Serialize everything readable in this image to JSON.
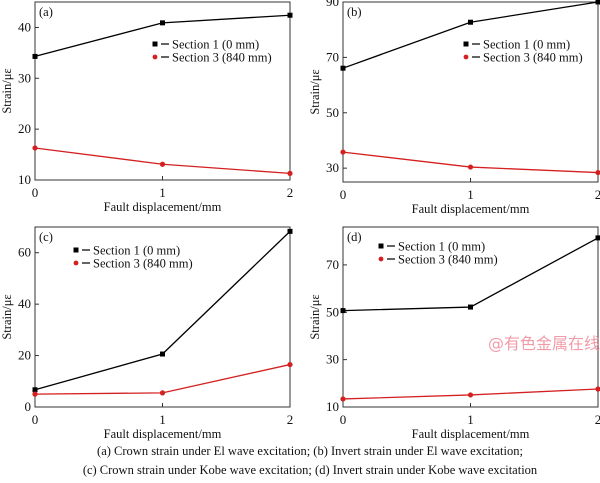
{
  "chart_data": [
    {
      "type": "line",
      "panel_label": "(a)",
      "xlabel": "Fault displacement/mm",
      "ylabel": "Strain/με",
      "x": [
        0,
        1,
        2
      ],
      "xlim": [
        0,
        2
      ],
      "xticks": [
        "0",
        "1",
        "2"
      ],
      "ylim": [
        10,
        45
      ],
      "yticks": [
        10,
        20,
        30,
        40
      ],
      "grid": false,
      "legend_placement": "upper-right",
      "series": [
        {
          "name": "Section 1 (0 mm)",
          "values": [
            34.3,
            40.9,
            42.4
          ],
          "color": "#000000",
          "marker": "square"
        },
        {
          "name": "Section 3 (840 mm)",
          "values": [
            16.3,
            13.1,
            11.3
          ],
          "color": "#d42020",
          "marker": "circle"
        }
      ]
    },
    {
      "type": "line",
      "panel_label": "(b)",
      "xlabel": "Fault displacement/mm",
      "ylabel": "Strain/με",
      "x": [
        0,
        1,
        2
      ],
      "xlim": [
        0,
        2
      ],
      "xticks": [
        "0",
        "1",
        "2"
      ],
      "ylim": [
        25,
        90
      ],
      "yticks": [
        30,
        50,
        70,
        90
      ],
      "grid": false,
      "legend_placement": "upper-right",
      "series": [
        {
          "name": "Section 1 (0 mm)",
          "values": [
            66.1,
            82.7,
            90.0
          ],
          "color": "#000000",
          "marker": "square"
        },
        {
          "name": "Section 3 (840 mm)",
          "values": [
            35.8,
            30.4,
            28.4
          ],
          "color": "#d42020",
          "marker": "circle"
        }
      ]
    },
    {
      "type": "line",
      "panel_label": "(c)",
      "xlabel": "Fault displacement/mm",
      "ylabel": "Strain/με",
      "x": [
        0,
        1,
        2
      ],
      "xlim": [
        0,
        2
      ],
      "xticks": [
        "0",
        "1",
        "2"
      ],
      "ylim": [
        0,
        70
      ],
      "yticks": [
        0,
        20,
        40,
        60
      ],
      "grid": false,
      "legend_placement": "upper-left",
      "series": [
        {
          "name": "Section 1 (0 mm)",
          "values": [
            6.7,
            20.6,
            68.3
          ],
          "color": "#000000",
          "marker": "square"
        },
        {
          "name": "Section 3 (840 mm)",
          "values": [
            5.0,
            5.5,
            16.5
          ],
          "color": "#d42020",
          "marker": "circle"
        }
      ]
    },
    {
      "type": "line",
      "panel_label": "(d)",
      "xlabel": "Fault displacement/mm",
      "ylabel": "Strain/με",
      "x": [
        0,
        1,
        2
      ],
      "xlim": [
        0,
        2
      ],
      "xticks": [
        "0",
        "1",
        "2"
      ],
      "ylim": [
        10,
        86
      ],
      "yticks": [
        10,
        30,
        50,
        70
      ],
      "grid": false,
      "legend_placement": "upper-left",
      "series": [
        {
          "name": "Section 1 (0 mm)",
          "values": [
            50.7,
            52.2,
            81.4
          ],
          "color": "#000000",
          "marker": "square"
        },
        {
          "name": "Section 3 (840 mm)",
          "values": [
            13.4,
            15.1,
            17.6
          ],
          "color": "#d42020",
          "marker": "circle"
        }
      ]
    }
  ],
  "captions": [
    "(a) Crown strain under El wave excitation; (b) Invert strain under El wave excitation;",
    "(c) Crown strain under Kobe wave excitation; (d) Invert strain under Kobe wave excitation"
  ],
  "watermark": "@有色金属在线"
}
